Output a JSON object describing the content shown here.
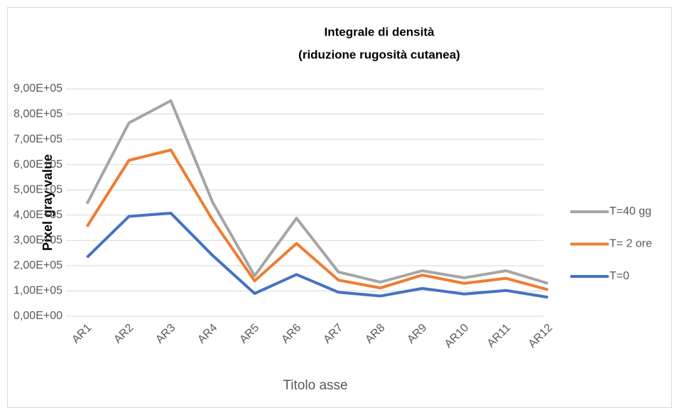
{
  "chart_data": {
    "type": "line",
    "title": [
      "Integrale di densità",
      "(riduzione rugosità cutanea)"
    ],
    "y_label": "Pixel gray value",
    "x_label": "Titolo asse",
    "categories": [
      "AR1",
      "AR2",
      "AR3",
      "AR4",
      "AR5",
      "AR6",
      "AR7",
      "AR8",
      "AR9",
      "AR10",
      "AR11",
      "AR12"
    ],
    "series": [
      {
        "name": "T=40 gg",
        "color": "#a5a5a5",
        "values": [
          445000,
          765000,
          853000,
          450000,
          160000,
          388000,
          175000,
          135000,
          180000,
          152000,
          180000,
          130000
        ]
      },
      {
        "name": "T= 2 ore",
        "color": "#ed7d31",
        "values": [
          355000,
          617000,
          658000,
          380000,
          140000,
          288000,
          143000,
          112000,
          163000,
          130000,
          150000,
          105000
        ]
      },
      {
        "name": "T=0",
        "color": "#4472c4",
        "values": [
          233000,
          395000,
          408000,
          240000,
          90000,
          165000,
          95000,
          80000,
          110000,
          88000,
          102000,
          75000
        ]
      }
    ],
    "ylim": [
      0,
      900000
    ],
    "yticks": [
      {
        "value": 0,
        "label": "0,00E+00"
      },
      {
        "value": 100000,
        "label": "1,00E+05"
      },
      {
        "value": 200000,
        "label": "2,00E+05"
      },
      {
        "value": 300000,
        "label": "3,00E+05"
      },
      {
        "value": 400000,
        "label": "4,00E+05"
      },
      {
        "value": 500000,
        "label": "5,00E+05"
      },
      {
        "value": 600000,
        "label": "6,00E+05"
      },
      {
        "value": 700000,
        "label": "7,00E+05"
      },
      {
        "value": 800000,
        "label": "8,00E+05"
      },
      {
        "value": 900000,
        "label": "9,00E+05"
      }
    ],
    "grid": true,
    "legend": "right"
  }
}
